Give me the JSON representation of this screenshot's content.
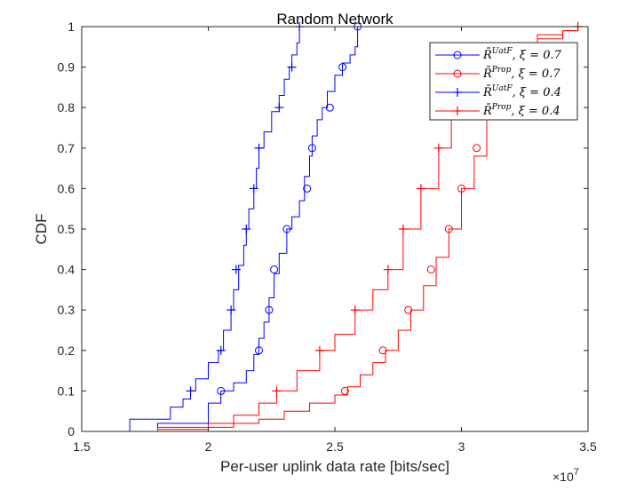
{
  "chart_data": {
    "type": "line",
    "title": "Random Network",
    "xlabel": "Per-user uplink data rate [bits/sec]",
    "ylabel": "CDF",
    "x_exponent_label": "×10",
    "x_exponent_power": "7",
    "xlim": [
      1.5,
      3.5
    ],
    "ylim": [
      0,
      1
    ],
    "x_ticks": [
      1.5,
      2,
      2.5,
      3,
      3.5
    ],
    "x_tick_labels": [
      "1.5",
      "2",
      "2.5",
      "3",
      "3.5"
    ],
    "y_ticks": [
      0,
      0.1,
      0.2,
      0.3,
      0.4,
      0.5,
      0.6,
      0.7,
      0.8,
      0.9,
      1
    ],
    "y_tick_labels": [
      "0",
      "0.1",
      "0.2",
      "0.3",
      "0.4",
      "0.5",
      "0.6",
      "0.7",
      "0.8",
      "0.9",
      "1"
    ],
    "grid": false,
    "legend_position": "top-right",
    "series": [
      {
        "name": "R̄^{UatF}, ξ = 0.7",
        "legend_main": "R̄",
        "legend_sup": "UatF",
        "legend_rest": ", ξ = 0.7",
        "color": "#0000ff",
        "marker": "circle",
        "x": [
          1.5,
          1.8,
          1.8,
          2.0,
          2.0,
          2.05,
          2.1,
          2.15,
          2.18,
          2.2,
          2.22,
          2.24,
          2.26,
          2.28,
          2.31,
          2.33,
          2.36,
          2.38,
          2.4,
          2.41,
          2.43,
          2.45,
          2.47,
          2.5,
          2.53,
          2.56,
          2.58,
          2.59
        ],
        "y": [
          0,
          0,
          0.02,
          0.04,
          0.07,
          0.1,
          0.12,
          0.15,
          0.19,
          0.23,
          0.27,
          0.33,
          0.39,
          0.44,
          0.5,
          0.53,
          0.57,
          0.63,
          0.68,
          0.73,
          0.77,
          0.8,
          0.84,
          0.88,
          0.91,
          0.93,
          0.95,
          1.0
        ],
        "markers_x": [
          2.05,
          2.2,
          2.24,
          2.26,
          2.31,
          2.39,
          2.41,
          2.48,
          2.53,
          2.59
        ],
        "markers_y": [
          0.1,
          0.2,
          0.3,
          0.4,
          0.5,
          0.6,
          0.7,
          0.8,
          0.9,
          1.0
        ]
      },
      {
        "name": "R̄^{Prop}, ξ = 0.7",
        "legend_main": "R̄",
        "legend_sup": "Prop",
        "legend_rest": ", ξ = 0.7",
        "color": "#ff0000",
        "marker": "circle",
        "x": [
          1.5,
          1.8,
          2.0,
          2.1,
          2.2,
          2.3,
          2.4,
          2.5,
          2.55,
          2.6,
          2.65,
          2.7,
          2.75,
          2.8,
          2.85,
          2.9,
          2.95,
          3.0,
          3.05,
          3.1,
          3.15,
          3.2,
          3.3,
          3.4,
          3.46
        ],
        "y": [
          0,
          0.005,
          0.01,
          0.02,
          0.03,
          0.05,
          0.07,
          0.09,
          0.11,
          0.14,
          0.17,
          0.2,
          0.25,
          0.3,
          0.36,
          0.43,
          0.5,
          0.6,
          0.68,
          0.78,
          0.86,
          0.92,
          0.97,
          0.99,
          1.0
        ],
        "markers_x": [
          2.54,
          2.69,
          2.79,
          2.88,
          2.95,
          3.0,
          3.06
        ],
        "markers_y": [
          0.1,
          0.2,
          0.3,
          0.4,
          0.5,
          0.6,
          0.7
        ]
      },
      {
        "name": "R̄^{UatF}, ξ = 0.4",
        "legend_main": "R̄",
        "legend_sup": "UatF",
        "legend_rest": ", ξ = 0.4",
        "color": "#0000ff",
        "marker": "plus",
        "x": [
          1.5,
          1.69,
          1.69,
          1.85,
          1.9,
          1.93,
          1.95,
          2.0,
          2.04,
          2.06,
          2.09,
          2.1,
          2.12,
          2.14,
          2.15,
          2.16,
          2.18,
          2.19,
          2.2,
          2.22,
          2.25,
          2.28,
          2.3,
          2.32,
          2.33,
          2.35,
          2.36,
          2.37
        ],
        "y": [
          0,
          0,
          0.03,
          0.06,
          0.08,
          0.1,
          0.13,
          0.17,
          0.2,
          0.25,
          0.3,
          0.35,
          0.41,
          0.46,
          0.5,
          0.55,
          0.6,
          0.65,
          0.7,
          0.74,
          0.79,
          0.83,
          0.87,
          0.9,
          0.93,
          0.96,
          1.0,
          1.0
        ],
        "markers_x": [
          1.93,
          2.05,
          2.09,
          2.11,
          2.15,
          2.18,
          2.2,
          2.28,
          2.33,
          2.36
        ],
        "markers_y": [
          0.1,
          0.2,
          0.3,
          0.4,
          0.5,
          0.6,
          0.7,
          0.8,
          0.9,
          1.0
        ]
      },
      {
        "name": "R̄^{Prop}, ξ = 0.4",
        "legend_main": "R̄",
        "legend_sup": "Prop",
        "legend_rest": ", ξ = 0.4",
        "color": "#ff0000",
        "marker": "plus",
        "x": [
          1.5,
          1.8,
          2.0,
          2.1,
          2.2,
          2.27,
          2.35,
          2.44,
          2.5,
          2.58,
          2.65,
          2.71,
          2.77,
          2.84,
          2.91,
          2.96,
          3.0,
          3.05,
          3.1,
          3.2,
          3.3,
          3.4,
          3.46
        ],
        "y": [
          0,
          0.01,
          0.02,
          0.04,
          0.07,
          0.1,
          0.15,
          0.2,
          0.24,
          0.3,
          0.35,
          0.4,
          0.5,
          0.6,
          0.7,
          0.77,
          0.83,
          0.88,
          0.92,
          0.96,
          0.98,
          0.99,
          1.0
        ],
        "markers_x": [
          2.27,
          2.44,
          2.58,
          2.71,
          2.77,
          2.84,
          2.91,
          3.46
        ],
        "markers_y": [
          0.1,
          0.2,
          0.3,
          0.4,
          0.5,
          0.6,
          0.7,
          1.0
        ]
      }
    ]
  }
}
